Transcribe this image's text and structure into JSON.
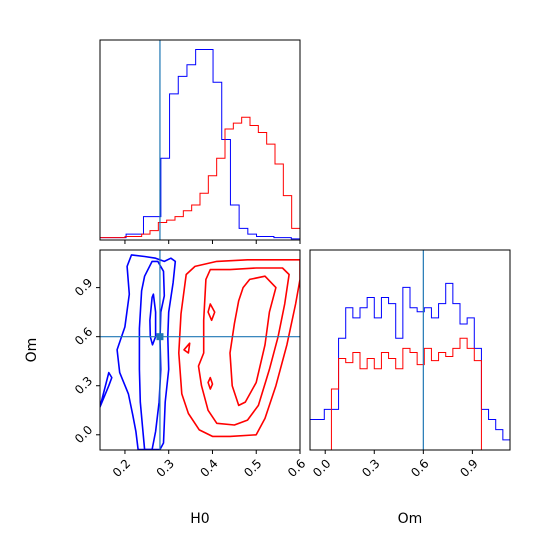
{
  "chart_data": {
    "type": "corner",
    "parameters": [
      "H0",
      "Om"
    ],
    "truths": {
      "H0": 0.28,
      "Om": 0.6
    },
    "colors": {
      "blue": "#0000ff",
      "red": "#ff0000",
      "truth": "#1f77b4"
    },
    "hist_H0": {
      "range": [
        0.143,
        0.6
      ],
      "xticks": [
        0.2,
        0.3,
        0.4,
        0.5,
        0.6
      ],
      "blue": [
        2,
        2,
        2,
        5,
        5,
        20,
        20,
        70,
        125,
        140,
        150,
        163,
        163,
        135,
        86,
        30,
        10,
        5,
        3,
        3,
        2,
        2,
        1
      ],
      "red": [
        2,
        2,
        2,
        3,
        3,
        5,
        8,
        15,
        17,
        20,
        25,
        30,
        40,
        55,
        70,
        95,
        100,
        105,
        98,
        92,
        82,
        65,
        38,
        10
      ]
    },
    "hist_Om": {
      "range": [
        -0.093,
        1.13
      ],
      "xticks": [
        0.0,
        0.3,
        0.6,
        0.9
      ],
      "xtick_labels": [
        "0.0",
        "0.3",
        "0.6",
        "0.9"
      ],
      "blue": [
        15,
        15,
        20,
        20,
        55,
        70,
        65,
        70,
        75,
        65,
        75,
        72,
        55,
        80,
        70,
        68,
        70,
        65,
        72,
        82,
        72,
        62,
        65,
        50,
        20,
        15,
        10,
        5
      ],
      "red": [
        0,
        0,
        0,
        30,
        45,
        43,
        48,
        40,
        45,
        40,
        48,
        45,
        40,
        50,
        48,
        42,
        50,
        44,
        48,
        46,
        50,
        55,
        50,
        44,
        0,
        0,
        0,
        0
      ]
    },
    "contour": {
      "xlabel": "H0",
      "ylabel": "Om",
      "xlim": [
        0.143,
        0.6
      ],
      "ylim": [
        -0.093,
        1.13
      ],
      "xticks": [
        0.2,
        0.3,
        0.4,
        0.5,
        0.6
      ],
      "xtick_labels": [
        "0.2",
        "0.3",
        "0.4",
        "0.5",
        "0.6"
      ],
      "yticks": [
        0.0,
        0.3,
        0.6,
        0.9
      ],
      "ytick_labels": [
        "0.0",
        "0.3",
        "0.6",
        "0.9"
      ],
      "blue_contours": [
        [
          [
            0.23,
            -0.09
          ],
          [
            0.225,
            0.02
          ],
          [
            0.218,
            0.12
          ],
          [
            0.208,
            0.25
          ],
          [
            0.188,
            0.38
          ],
          [
            0.182,
            0.52
          ],
          [
            0.2,
            0.66
          ],
          [
            0.21,
            0.86
          ],
          [
            0.205,
            1.03
          ],
          [
            0.215,
            1.1
          ],
          [
            0.245,
            1.09
          ],
          [
            0.27,
            1.08
          ],
          [
            0.29,
            1.06
          ],
          [
            0.305,
            1.08
          ],
          [
            0.315,
            1.06
          ],
          [
            0.31,
            0.93
          ],
          [
            0.3,
            0.75
          ],
          [
            0.298,
            0.6
          ],
          [
            0.3,
            0.4
          ],
          [
            0.292,
            0.2
          ],
          [
            0.288,
            -0.05
          ],
          [
            0.28,
            -0.09
          ]
        ],
        [
          [
            0.245,
            -0.09
          ],
          [
            0.24,
            0.05
          ],
          [
            0.235,
            0.2
          ],
          [
            0.233,
            0.4
          ],
          [
            0.233,
            0.65
          ],
          [
            0.238,
            0.88
          ],
          [
            0.245,
            0.97
          ],
          [
            0.262,
            1.06
          ],
          [
            0.275,
            1.06
          ],
          [
            0.288,
            1.0
          ],
          [
            0.29,
            0.85
          ],
          [
            0.282,
            0.75
          ],
          [
            0.28,
            0.58
          ],
          [
            0.282,
            0.4
          ],
          [
            0.278,
            0.2
          ],
          [
            0.27,
            0.02
          ],
          [
            0.262,
            -0.09
          ]
        ],
        [
          [
            0.262,
            0.84
          ],
          [
            0.257,
            0.7
          ],
          [
            0.258,
            0.6
          ],
          [
            0.263,
            0.55
          ],
          [
            0.27,
            0.6
          ],
          [
            0.27,
            0.75
          ],
          [
            0.265,
            0.86
          ]
        ],
        [
          [
            0.143,
            0.17
          ],
          [
            0.163,
            0.38
          ],
          [
            0.17,
            0.35
          ],
          [
            0.163,
            0.3
          ]
        ]
      ],
      "red_contours": [
        [
          [
            0.33,
            0.25
          ],
          [
            0.323,
            0.5
          ],
          [
            0.328,
            0.74
          ],
          [
            0.34,
            0.98
          ],
          [
            0.36,
            1.03
          ],
          [
            0.41,
            1.06
          ],
          [
            0.48,
            1.07
          ],
          [
            0.55,
            1.07
          ],
          [
            0.6,
            1.07
          ],
          [
            0.6,
            0.95
          ],
          [
            0.59,
            0.8
          ],
          [
            0.57,
            0.55
          ],
          [
            0.545,
            0.3
          ],
          [
            0.52,
            0.1
          ],
          [
            0.5,
            0.0
          ],
          [
            0.44,
            -0.01
          ],
          [
            0.4,
            -0.01
          ],
          [
            0.37,
            0.03
          ],
          [
            0.345,
            0.13
          ]
        ],
        [
          [
            0.38,
            0.5
          ],
          [
            0.38,
            0.7
          ],
          [
            0.385,
            0.95
          ],
          [
            0.395,
            1.01
          ],
          [
            0.44,
            1.01
          ],
          [
            0.5,
            1.02
          ],
          [
            0.56,
            1.02
          ],
          [
            0.575,
            0.98
          ],
          [
            0.565,
            0.8
          ],
          [
            0.55,
            0.6
          ],
          [
            0.53,
            0.4
          ],
          [
            0.505,
            0.18
          ],
          [
            0.48,
            0.09
          ],
          [
            0.45,
            0.06
          ],
          [
            0.41,
            0.07
          ],
          [
            0.39,
            0.15
          ],
          [
            0.375,
            0.3
          ],
          [
            0.368,
            0.42
          ]
        ],
        [
          [
            0.47,
            0.9
          ],
          [
            0.485,
            0.95
          ],
          [
            0.52,
            0.97
          ],
          [
            0.545,
            0.9
          ],
          [
            0.53,
            0.75
          ],
          [
            0.52,
            0.55
          ],
          [
            0.5,
            0.32
          ],
          [
            0.475,
            0.2
          ],
          [
            0.46,
            0.18
          ],
          [
            0.445,
            0.3
          ],
          [
            0.44,
            0.5
          ],
          [
            0.45,
            0.68
          ],
          [
            0.46,
            0.82
          ]
        ],
        [
          [
            0.39,
            0.32
          ],
          [
            0.395,
            0.35
          ],
          [
            0.4,
            0.31
          ],
          [
            0.395,
            0.28
          ]
        ],
        [
          [
            0.395,
            0.8
          ],
          [
            0.405,
            0.75
          ],
          [
            0.398,
            0.7
          ],
          [
            0.39,
            0.75
          ]
        ],
        [
          [
            0.335,
            0.52
          ],
          [
            0.348,
            0.56
          ],
          [
            0.345,
            0.5
          ]
        ]
      ]
    }
  }
}
